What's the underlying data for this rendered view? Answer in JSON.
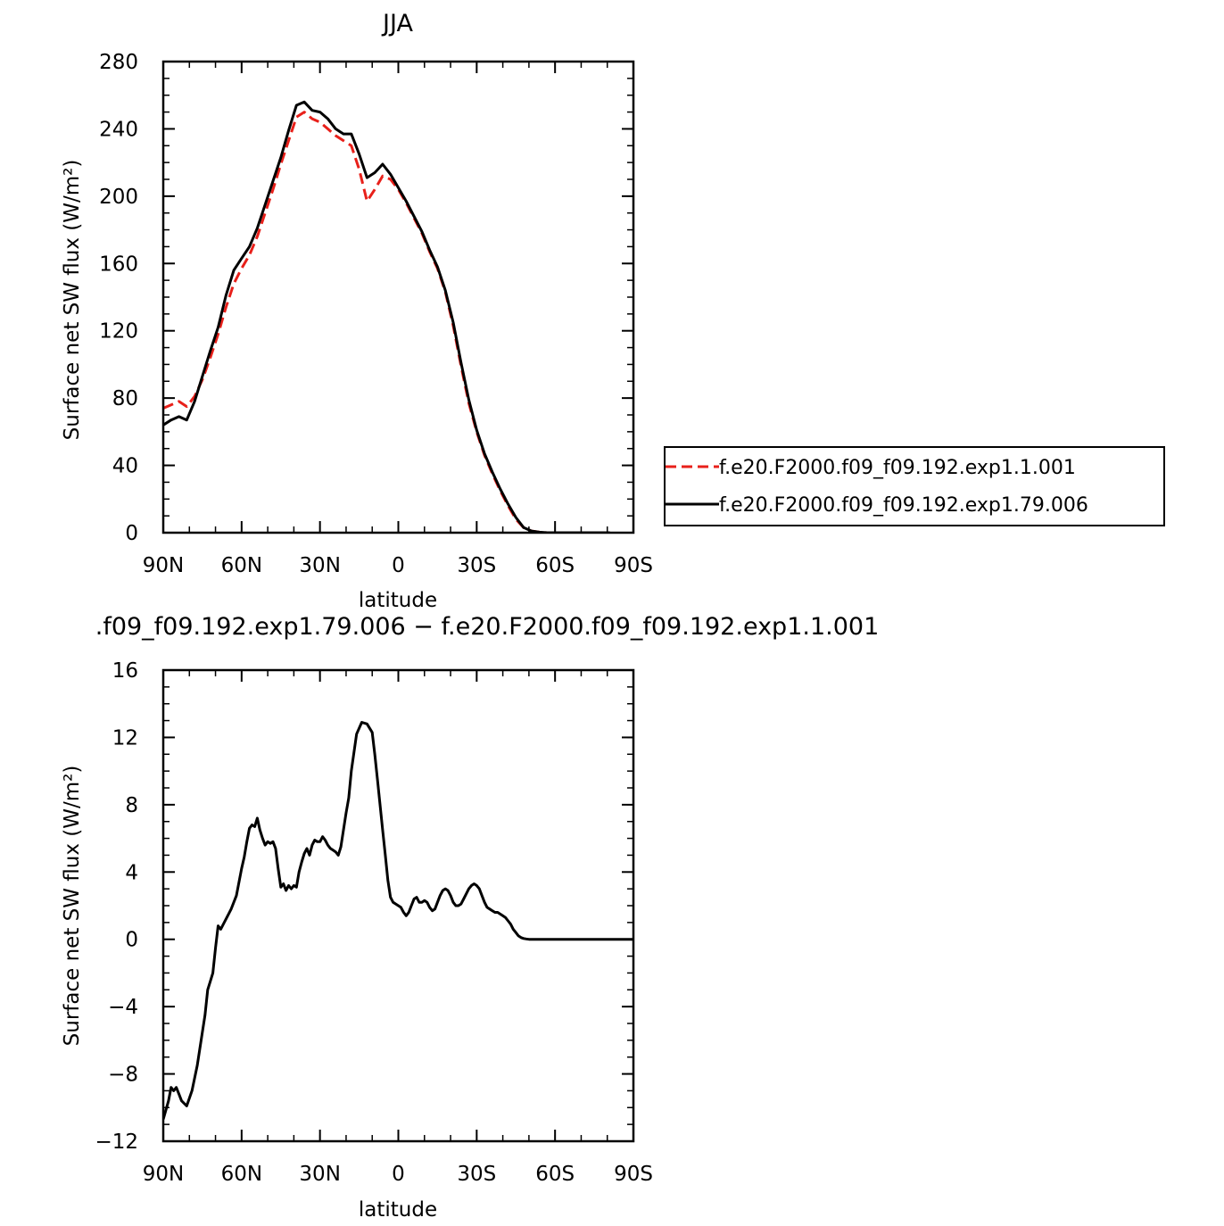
{
  "chart_data": [
    {
      "type": "line",
      "title": "JJA",
      "xlabel": "latitude",
      "ylabel": "Surface net SW flux (W/m²)",
      "xlim": [
        90,
        -90
      ],
      "ylim": [
        0,
        280
      ],
      "xticks": [
        90,
        60,
        30,
        0,
        -30,
        -60,
        -90
      ],
      "xtick_labels": [
        "90N",
        "60N",
        "30N",
        "0",
        "30S",
        "60S",
        "90S"
      ],
      "yticks": [
        0,
        40,
        80,
        120,
        160,
        200,
        240,
        280
      ],
      "ytick_labels": [
        "0",
        "40",
        "80",
        "120",
        "160",
        "200",
        "240",
        "280"
      ],
      "grid": false,
      "legend": "right",
      "series": [
        {
          "name": "f.e20.F2000.f09_f09.192.exp1.1.001",
          "color": "#e8201a",
          "dash": "dashed",
          "x": [
            90,
            87,
            84,
            81,
            78,
            75,
            72,
            69,
            66,
            63,
            60,
            57,
            54,
            51,
            48,
            45,
            42,
            39,
            36,
            33,
            30,
            27,
            24,
            21,
            18,
            15,
            12,
            9,
            6,
            3,
            0,
            -3,
            -6,
            -9,
            -12,
            -15,
            -18,
            -21,
            -24,
            -27,
            -30,
            -33,
            -36,
            -39,
            -42,
            -45,
            -48,
            -51,
            -54,
            -57,
            -60,
            -63,
            -66,
            -69,
            -72,
            -75,
            -78,
            -81
          ],
          "y": [
            74,
            76,
            78,
            75,
            81,
            91,
            104,
            118,
            134,
            148,
            157,
            165,
            176,
            190,
            204,
            219,
            233,
            247,
            250,
            246,
            244,
            240,
            236,
            233,
            230,
            216,
            197,
            204,
            212,
            210,
            204,
            196,
            187,
            178,
            167,
            157,
            143,
            123,
            99,
            77,
            60,
            46,
            35,
            25,
            16,
            8,
            3,
            1,
            0.3,
            0,
            0,
            0,
            0,
            0,
            0,
            0,
            0,
            0
          ]
        },
        {
          "name": "f.e20.F2000.f09_f09.192.exp1.79.006",
          "color": "#000000",
          "dash": "solid",
          "x": [
            90,
            87,
            84,
            81,
            78,
            75,
            72,
            69,
            66,
            63,
            60,
            57,
            54,
            51,
            48,
            45,
            42,
            39,
            36,
            33,
            30,
            27,
            24,
            21,
            18,
            15,
            12,
            9,
            6,
            3,
            0,
            -3,
            -6,
            -9,
            -12,
            -15,
            -18,
            -21,
            -24,
            -27,
            -30,
            -33,
            -36,
            -39,
            -42,
            -45,
            -48,
            -51,
            -54,
            -57,
            -60,
            -63,
            -66,
            -69,
            -72,
            -75,
            -78,
            -81
          ],
          "y": [
            64,
            67,
            69,
            67,
            78,
            93,
            108,
            122,
            141,
            156,
            163,
            170,
            181,
            195,
            209,
            223,
            239,
            254,
            256,
            251,
            250,
            246,
            240,
            237,
            237,
            225,
            211,
            214,
            219,
            213,
            205,
            197,
            188,
            179,
            168,
            158,
            144,
            125,
            101,
            79,
            61,
            47,
            36,
            26,
            17,
            9,
            3,
            1,
            0.3,
            0,
            0,
            0,
            0,
            0,
            0,
            0,
            0,
            0
          ]
        }
      ]
    },
    {
      "type": "line",
      "title": ".f09_f09.192.exp1.79.006 − f.e20.F2000.f09_f09.192.exp1.1.001",
      "xlabel": "latitude",
      "ylabel": "Surface net SW flux (W/m²)",
      "xlim": [
        90,
        -90
      ],
      "ylim": [
        -12,
        16
      ],
      "xticks": [
        90,
        60,
        30,
        0,
        -30,
        -60,
        -90
      ],
      "xtick_labels": [
        "90N",
        "60N",
        "30N",
        "0",
        "30S",
        "60S",
        "90S"
      ],
      "yticks": [
        -12,
        -8,
        -4,
        0,
        4,
        8,
        12,
        16
      ],
      "ytick_labels": [
        "−12",
        "−8",
        "−4",
        "0",
        "4",
        "8",
        "12",
        "16"
      ],
      "grid": false,
      "series": [
        {
          "color": "#000000",
          "dash": "solid",
          "x": [
            90,
            88,
            87,
            86,
            85,
            84,
            83,
            81,
            79,
            77,
            75,
            74,
            73,
            72,
            71,
            70,
            69,
            68,
            66,
            64,
            62,
            60,
            59,
            58,
            57,
            56,
            55,
            54,
            53,
            52,
            51,
            50,
            49,
            48,
            47,
            46,
            45,
            44,
            43,
            42,
            41,
            40,
            39,
            38,
            37,
            36,
            35,
            34,
            33,
            32,
            31,
            30,
            29,
            28,
            27,
            26,
            25,
            24,
            23,
            22,
            21,
            20,
            19,
            18,
            16,
            14,
            12,
            10,
            9,
            8,
            7,
            6,
            5,
            4,
            3,
            2,
            1,
            0,
            -1,
            -2,
            -3,
            -4,
            -5,
            -6,
            -7,
            -8,
            -9,
            -10,
            -11,
            -12,
            -13,
            -14,
            -15,
            -16,
            -17,
            -18,
            -19,
            -20,
            -21,
            -22,
            -23,
            -24,
            -25,
            -26,
            -27,
            -28,
            -29,
            -30,
            -31,
            -32,
            -33,
            -34,
            -35,
            -36,
            -37,
            -38,
            -39,
            -40,
            -41,
            -42,
            -43,
            -44,
            -45,
            -46,
            -47,
            -48,
            -49,
            -50,
            -52,
            -54,
            -56,
            -58,
            -60,
            -62,
            -64,
            -66,
            -68,
            -70,
            -75,
            -80,
            -85,
            -90
          ],
          "y": [
            -10.7,
            -9.6,
            -8.8,
            -9.0,
            -8.8,
            -9.2,
            -9.6,
            -9.9,
            -9.0,
            -7.5,
            -5.5,
            -4.5,
            -3.0,
            -2.5,
            -2.0,
            -0.5,
            0.8,
            0.6,
            1.2,
            1.8,
            2.6,
            4.2,
            4.9,
            5.8,
            6.6,
            6.8,
            6.7,
            7.2,
            6.5,
            6.0,
            5.6,
            5.8,
            5.7,
            5.8,
            5.4,
            4.2,
            3.1,
            3.3,
            2.9,
            3.2,
            3.0,
            3.2,
            3.1,
            4.0,
            4.6,
            5.1,
            5.4,
            5.0,
            5.6,
            5.9,
            5.8,
            5.8,
            6.1,
            5.9,
            5.6,
            5.4,
            5.3,
            5.2,
            5.0,
            5.5,
            6.5,
            7.5,
            8.4,
            10.0,
            12.2,
            12.9,
            12.8,
            12.3,
            11.0,
            9.5,
            8.0,
            6.5,
            5.0,
            3.5,
            2.5,
            2.2,
            2.1,
            2.0,
            1.9,
            1.6,
            1.4,
            1.6,
            2.0,
            2.4,
            2.5,
            2.2,
            2.2,
            2.3,
            2.2,
            1.9,
            1.7,
            1.8,
            2.2,
            2.6,
            2.9,
            3.0,
            2.9,
            2.6,
            2.2,
            2.0,
            2.0,
            2.1,
            2.4,
            2.7,
            3.0,
            3.2,
            3.3,
            3.2,
            3.0,
            2.6,
            2.2,
            1.9,
            1.8,
            1.7,
            1.6,
            1.6,
            1.5,
            1.4,
            1.3,
            1.1,
            0.9,
            0.6,
            0.4,
            0.2,
            0.1,
            0.05,
            0.02,
            0,
            0,
            0,
            0,
            0,
            0,
            0,
            0,
            0,
            0,
            0,
            0,
            0,
            0,
            0
          ]
        }
      ]
    }
  ]
}
